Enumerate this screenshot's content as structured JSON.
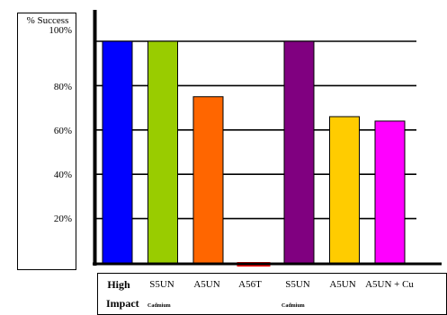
{
  "chart_data": {
    "type": "bar",
    "ylabel": "% Success",
    "ylim": [
      0,
      100
    ],
    "yticks": [
      "100%",
      "80%",
      "60%",
      "40%",
      "20%"
    ],
    "grid": true,
    "categories": [
      {
        "label": "High",
        "sub": "Impact",
        "value": 100,
        "color": "#0000ff"
      },
      {
        "label": "S5UN",
        "sub": "Cadmium",
        "value": 100,
        "color": "#99cc00"
      },
      {
        "label": "A5UN",
        "sub": "",
        "value": 75,
        "color": "#ff6600"
      },
      {
        "label": "A56T",
        "sub": "",
        "value": 1,
        "color": "#ff0000"
      },
      {
        "label": "S5UN",
        "sub": "Cadmium",
        "value": 100,
        "color": "#800080"
      },
      {
        "label": "A5UN",
        "sub": "",
        "value": 66,
        "color": "#ffcc00"
      },
      {
        "label": "A5UN + Cu",
        "sub": "",
        "value": 64,
        "color": "#ff00ff"
      }
    ]
  }
}
